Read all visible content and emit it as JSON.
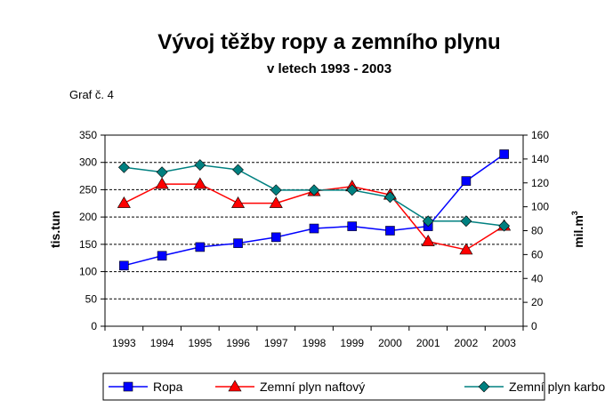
{
  "chart_data": {
    "type": "line",
    "title": "Vývoj těžby ropy a zemního plynu",
    "subtitle": "v letech 1993 - 2003",
    "note": "Graf č. 4",
    "ylabel_left": "tis.tun",
    "ylabel_right_main": "mil.m",
    "ylabel_right_sup": "3",
    "categories": [
      "1993",
      "1994",
      "1995",
      "1996",
      "1997",
      "1998",
      "1999",
      "2000",
      "2001",
      "2002",
      "2003"
    ],
    "ylim_left": [
      0,
      350
    ],
    "yticks_left": [
      0,
      50,
      100,
      150,
      200,
      250,
      300,
      350
    ],
    "ylim_right": [
      0,
      160
    ],
    "yticks_right": [
      0,
      20,
      40,
      60,
      80,
      100,
      120,
      140,
      160
    ],
    "grid": true,
    "legend_position": "bottom",
    "series": [
      {
        "name": "Ropa",
        "axis": "left",
        "color": "#0000ff",
        "marker": "square",
        "values": [
          111,
          129,
          145,
          152,
          163,
          179,
          183,
          175,
          183,
          266,
          315
        ]
      },
      {
        "name": "Zemní plyn naftový",
        "axis": "right",
        "color": "#ff0000",
        "marker": "triangle",
        "values": [
          103,
          119,
          119,
          103,
          103,
          113,
          117,
          110,
          71,
          64,
          84
        ]
      },
      {
        "name": "Zemní plyn karbonský",
        "axis": "right",
        "color": "#008080",
        "marker": "diamond",
        "values": [
          133,
          129,
          135,
          131,
          114,
          114,
          114,
          108,
          88,
          88,
          84
        ]
      }
    ]
  }
}
